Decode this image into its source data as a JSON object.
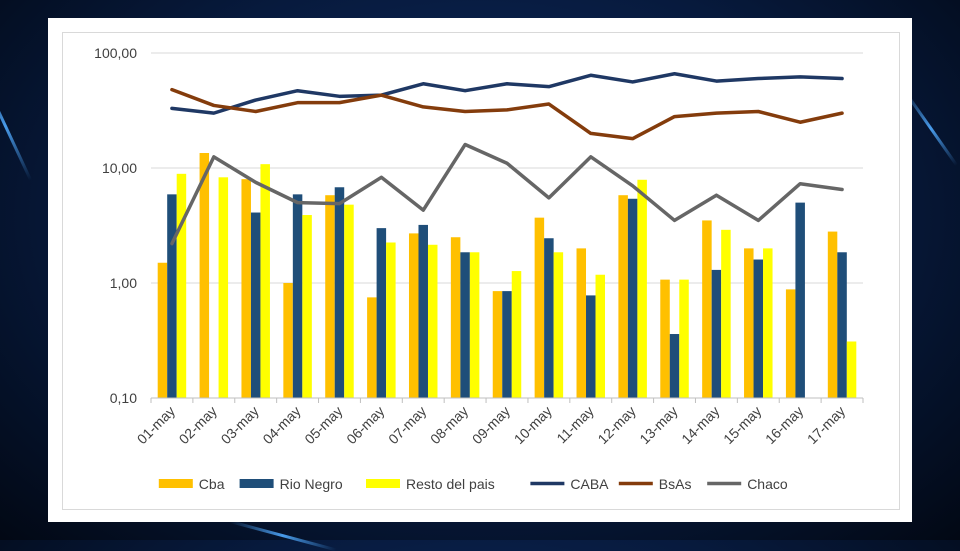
{
  "chart_data": {
    "type": "bar+line",
    "yscale": "log",
    "ylim": [
      0.1,
      100
    ],
    "y_tick_labels": [
      "100,00",
      "10,00",
      "1,00",
      "0,10"
    ],
    "y_tick_values": [
      100,
      10,
      1,
      0.1
    ],
    "categories": [
      "01-may",
      "02-may",
      "03-may",
      "04-may",
      "05-may",
      "06-may",
      "07-may",
      "08-may",
      "09-may",
      "10-may",
      "11-may",
      "12-may",
      "13-may",
      "14-may",
      "15-may",
      "16-may",
      "17-may"
    ],
    "bar_series": [
      {
        "name": "Cba",
        "color": "#FFC000",
        "values": [
          1.5,
          13.5,
          8.0,
          1.0,
          5.8,
          0.75,
          2.7,
          2.5,
          0.85,
          3.7,
          2.0,
          5.8,
          1.07,
          3.5,
          2.0,
          0.88,
          2.8
        ]
      },
      {
        "name": "Rio Negro",
        "color": "#1F4E79",
        "values": [
          5.9,
          null,
          4.1,
          5.9,
          6.8,
          3.0,
          3.2,
          1.85,
          0.85,
          2.45,
          0.78,
          5.4,
          0.36,
          1.3,
          1.6,
          5.0,
          1.85
        ]
      },
      {
        "name": "Resto del pais",
        "color": "#FFFF00",
        "values": [
          8.9,
          8.3,
          10.8,
          3.9,
          4.8,
          2.25,
          2.15,
          1.85,
          1.27,
          1.85,
          1.18,
          7.9,
          1.07,
          2.9,
          2.0,
          null,
          0.31
        ]
      }
    ],
    "line_series": [
      {
        "name": "CABA",
        "color": "#1F3864",
        "values": [
          33,
          30,
          39,
          47,
          42,
          43,
          54,
          47,
          54,
          51,
          64,
          56,
          66,
          57,
          60,
          62,
          60
        ]
      },
      {
        "name": "BsAs",
        "color": "#843C0C",
        "values": [
          48,
          35,
          31,
          37,
          37,
          43,
          34,
          31,
          32,
          36,
          20,
          18,
          28,
          30,
          31,
          25,
          30
        ]
      },
      {
        "name": "Chaco",
        "color": "#666666",
        "values": [
          2.2,
          12.5,
          7.5,
          5.0,
          4.9,
          8.3,
          4.3,
          16.0,
          11.0,
          5.5,
          12.5,
          7.0,
          3.5,
          5.8,
          3.5,
          7.3,
          6.5
        ]
      }
    ],
    "legend": [
      "Cba",
      "Rio Negro",
      "Resto del pais",
      "CABA",
      "BsAs",
      "Chaco"
    ],
    "legend_position": "bottom",
    "grid": true
  }
}
